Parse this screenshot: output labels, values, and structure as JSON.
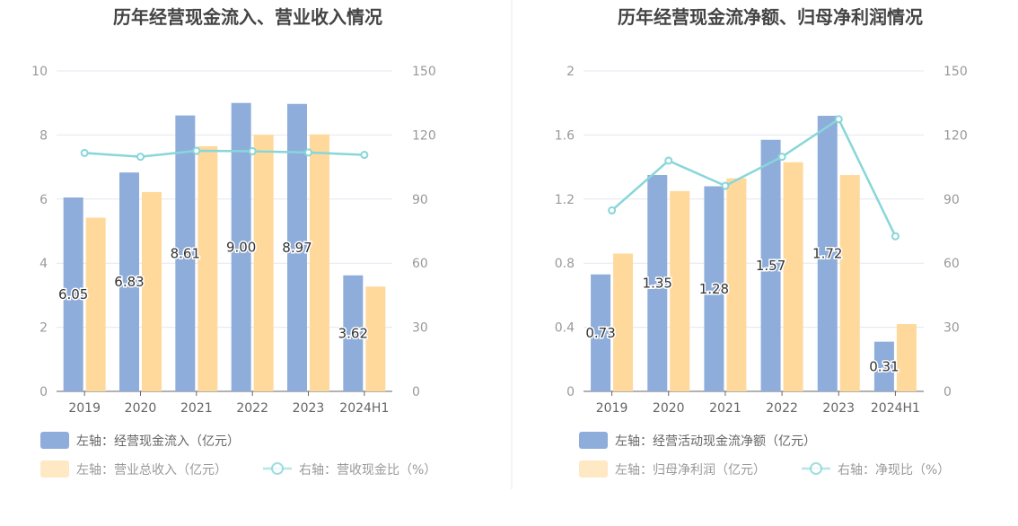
{
  "charts": [
    {
      "title": "历年经营现金流入、营业收入情况",
      "legend": {
        "bar1": "左轴：经营现金流入（亿元）",
        "bar2": "左轴：营业总收入（亿元）",
        "line": "右轴：营收现金比（%）"
      }
    },
    {
      "title": "历年经营现金流净额、归母净利润情况",
      "legend": {
        "bar1": "左轴：经营活动现金流净额（亿元）",
        "bar2": "左轴：归母净利润（亿元）",
        "line": "右轴：净现比（%）"
      }
    }
  ],
  "colors": {
    "bar1": "#8eaddb",
    "bar2": "#ffd99c",
    "line": "#88d6d9",
    "grid": "#e4e7f0",
    "axis": "#666666",
    "tick": "#999999",
    "title": "#444444"
  },
  "chart_data": [
    {
      "type": "bar",
      "title": "历年经营现金流入、营业收入情况",
      "categories": [
        "2019",
        "2020",
        "2021",
        "2022",
        "2023",
        "2024H1"
      ],
      "left_axis": {
        "range": [
          0,
          10
        ],
        "ticks": [
          "0",
          "2",
          "4",
          "6",
          "8",
          "10"
        ]
      },
      "right_axis": {
        "range": [
          0,
          150
        ],
        "ticks": [
          "0",
          "30",
          "60",
          "90",
          "120",
          "150"
        ]
      },
      "series": [
        {
          "name": "左轴：经营现金流入（亿元）",
          "kind": "bar",
          "axis": "left",
          "values": [
            6.05,
            6.83,
            8.61,
            9.0,
            8.97,
            3.62
          ],
          "labels": [
            "6.05",
            "6.83",
            "8.61",
            "9.00",
            "8.97",
            "3.62"
          ]
        },
        {
          "name": "左轴：营业总收入（亿元）",
          "kind": "bar",
          "axis": "left",
          "values": [
            5.42,
            6.22,
            7.65,
            8.01,
            8.02,
            3.27
          ]
        },
        {
          "name": "右轴：营收现金比（%）",
          "kind": "line",
          "axis": "right",
          "values": [
            111.6,
            109.8,
            112.6,
            112.4,
            111.8,
            110.7
          ]
        }
      ]
    },
    {
      "type": "bar",
      "title": "历年经营现金流净额、归母净利润情况",
      "categories": [
        "2019",
        "2020",
        "2021",
        "2022",
        "2023",
        "2024H1"
      ],
      "left_axis": {
        "range": [
          0,
          2
        ],
        "ticks": [
          "0",
          "0.4",
          "0.8",
          "1.2",
          "1.6",
          "2"
        ]
      },
      "right_axis": {
        "range": [
          0,
          150
        ],
        "ticks": [
          "0",
          "30",
          "60",
          "90",
          "120",
          "150"
        ]
      },
      "series": [
        {
          "name": "左轴：经营活动现金流净额（亿元）",
          "kind": "bar",
          "axis": "left",
          "values": [
            0.73,
            1.35,
            1.28,
            1.57,
            1.72,
            0.31
          ],
          "labels": [
            "0.73",
            "1.35",
            "1.28",
            "1.57",
            "1.72",
            "0.31"
          ]
        },
        {
          "name": "左轴：归母净利润（亿元）",
          "kind": "bar",
          "axis": "left",
          "values": [
            0.86,
            1.25,
            1.33,
            1.43,
            1.35,
            0.42
          ]
        },
        {
          "name": "右轴：净现比（%）",
          "kind": "line",
          "axis": "right",
          "values": [
            84.7,
            108.0,
            96.2,
            109.8,
            127.4,
            72.6
          ]
        }
      ]
    }
  ]
}
